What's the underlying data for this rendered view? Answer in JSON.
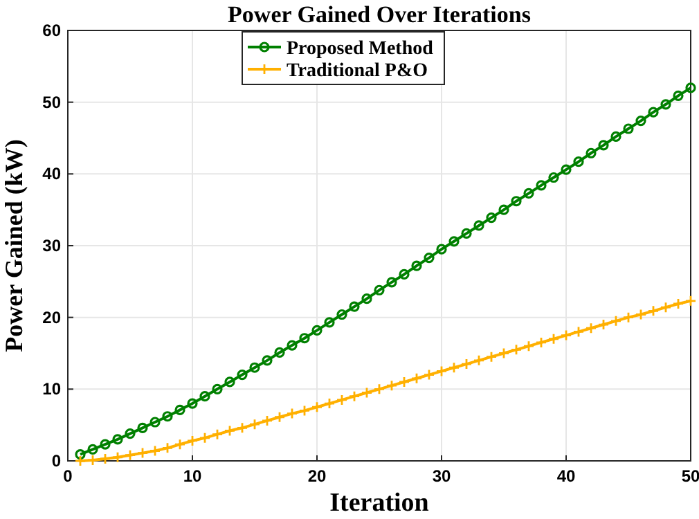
{
  "chart_data": {
    "type": "line",
    "title": "Power Gained Over Iterations",
    "xlabel": "Iteration",
    "ylabel": "Power Gained (kW)",
    "x": [
      1,
      2,
      3,
      4,
      5,
      6,
      7,
      8,
      9,
      10,
      11,
      12,
      13,
      14,
      15,
      16,
      17,
      18,
      19,
      20,
      21,
      22,
      23,
      24,
      25,
      26,
      27,
      28,
      29,
      30,
      31,
      32,
      33,
      34,
      35,
      36,
      37,
      38,
      39,
      40,
      41,
      42,
      43,
      44,
      45,
      46,
      47,
      48,
      49,
      50
    ],
    "series": [
      {
        "name": "Proposed Method",
        "color": "#008000",
        "marker": "circle",
        "values": [
          0.9,
          1.6,
          2.3,
          3.0,
          3.8,
          4.6,
          5.4,
          6.2,
          7.1,
          8.0,
          9.0,
          10.0,
          11.0,
          12.0,
          13.0,
          14.0,
          15.1,
          16.1,
          17.1,
          18.2,
          19.3,
          20.4,
          21.5,
          22.6,
          23.8,
          24.9,
          26.0,
          27.2,
          28.3,
          29.5,
          30.6,
          31.7,
          32.8,
          33.9,
          35.0,
          36.2,
          37.3,
          38.4,
          39.5,
          40.6,
          41.7,
          42.9,
          44.0,
          45.2,
          46.3,
          47.4,
          48.6,
          49.7,
          50.9,
          52.0
        ]
      },
      {
        "name": "Traditional P&O",
        "color": "#ffb000",
        "marker": "cross",
        "values": [
          0,
          0.1,
          0.3,
          0.5,
          0.8,
          1.1,
          1.4,
          1.8,
          2.3,
          2.8,
          3.2,
          3.7,
          4.2,
          4.6,
          5.1,
          5.6,
          6.1,
          6.6,
          7.0,
          7.5,
          8.0,
          8.5,
          9.0,
          9.5,
          10.0,
          10.5,
          11.0,
          11.5,
          12.0,
          12.5,
          13.0,
          13.5,
          14.0,
          14.5,
          15.0,
          15.5,
          16.0,
          16.5,
          17.0,
          17.5,
          18.0,
          18.5,
          19.0,
          19.5,
          20.0,
          20.4,
          20.9,
          21.4,
          21.9,
          22.3
        ]
      }
    ],
    "xlim": [
      0,
      50
    ],
    "xticks": [
      0,
      10,
      20,
      30,
      40,
      50
    ],
    "ylim": [
      0,
      60
    ],
    "yticks": [
      0,
      10,
      20,
      30,
      40,
      50,
      60
    ],
    "grid": true,
    "legend": "top",
    "line_style": "solid"
  }
}
